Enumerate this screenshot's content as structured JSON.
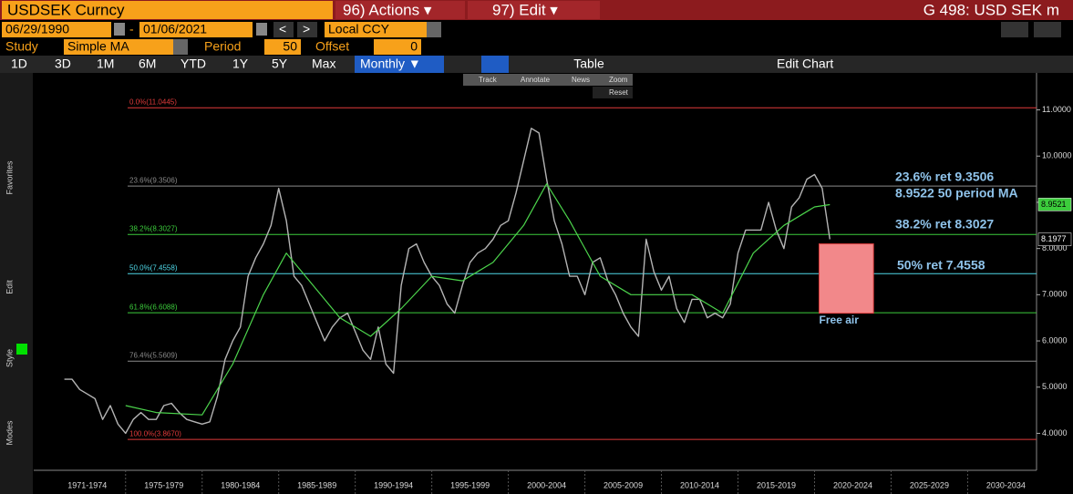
{
  "ui": {
    "title": "USDSEK Curncy",
    "actions": "96) Actions ▾",
    "edit": "97) Edit ▾",
    "security": "G 498: USD SEK m",
    "start_date": "06/29/1990",
    "end_date": "01/06/2021",
    "currency": "Local CCY",
    "study_label": "Study",
    "study": "Simple MA",
    "period_label": "Period",
    "period": "50",
    "offset_label": "Offset",
    "offset": "0",
    "ranges": [
      "1D",
      "3D",
      "1M",
      "6M",
      "YTD",
      "1Y",
      "5Y",
      "Max"
    ],
    "frequency": "Monthly ▼",
    "table": "Table",
    "edit_chart": "Edit Chart",
    "tools": [
      "Track",
      "Annotate",
      "News",
      "Zoom",
      "Reset"
    ],
    "side": [
      "Favorites",
      "Edit",
      "Style",
      "Modes"
    ]
  },
  "chart_data": {
    "type": "line",
    "xlim": [
      1969,
      2034.5
    ],
    "ylim": [
      3.2,
      11.8
    ],
    "yticks": [
      {
        "value": 4,
        "label": "4.0000"
      },
      {
        "value": 5,
        "label": "5.0000"
      },
      {
        "value": 6,
        "label": "6.0000"
      },
      {
        "value": 7,
        "label": "7.0000"
      },
      {
        "value": 8,
        "label": "8.0000"
      },
      {
        "value": 9,
        "label": "9.0000"
      },
      {
        "value": 10,
        "label": "10.0000"
      },
      {
        "value": 11,
        "label": "11.0000"
      }
    ],
    "xticks": [
      {
        "value": 1972.5,
        "label": "1971-1974"
      },
      {
        "value": 1977.5,
        "label": "1975-1979"
      },
      {
        "value": 1982.5,
        "label": "1980-1984"
      },
      {
        "value": 1987.5,
        "label": "1985-1989"
      },
      {
        "value": 1992.5,
        "label": "1990-1994"
      },
      {
        "value": 1997.5,
        "label": "1995-1999"
      },
      {
        "value": 2002.5,
        "label": "2000-2004"
      },
      {
        "value": 2007.5,
        "label": "2005-2009"
      },
      {
        "value": 2012.5,
        "label": "2010-2014"
      },
      {
        "value": 2017.5,
        "label": "2015-2019"
      },
      {
        "value": 2022.5,
        "label": "2020-2024"
      },
      {
        "value": 2027.5,
        "label": "2025-2029"
      },
      {
        "value": 2032.5,
        "label": "2030-2034"
      }
    ],
    "xgrid": [
      1975,
      1980,
      1985,
      1990,
      1995,
      2000,
      2005,
      2010,
      2015,
      2020,
      2025,
      2030
    ],
    "series": [
      {
        "name": "USDSEK",
        "color": "#b4b4b4",
        "x": [
          1971,
          1971.5,
          1972,
          1972.5,
          1973,
          1973.5,
          1974,
          1974.5,
          1975,
          1975.5,
          1976,
          1976.5,
          1977,
          1977.5,
          1978,
          1978.5,
          1979,
          1979.5,
          1980,
          1980.5,
          1981,
          1981.5,
          1982,
          1982.5,
          1983,
          1983.5,
          1984,
          1984.5,
          1985,
          1985.5,
          1986,
          1986.5,
          1987,
          1987.5,
          1988,
          1988.5,
          1989,
          1989.5,
          1990,
          1990.5,
          1991,
          1991.5,
          1992,
          1992.5,
          1993,
          1993.5,
          1994,
          1994.5,
          1995,
          1995.5,
          1996,
          1996.5,
          1997,
          1997.5,
          1998,
          1998.5,
          1999,
          1999.5,
          2000,
          2000.5,
          2001,
          2001.5,
          2002,
          2002.5,
          2003,
          2003.5,
          2004,
          2004.5,
          2005,
          2005.5,
          2006,
          2006.5,
          2007,
          2007.5,
          2008,
          2008.5,
          2009,
          2009.5,
          2010,
          2010.5,
          2011,
          2011.5,
          2012,
          2012.5,
          2013,
          2013.5,
          2014,
          2014.5,
          2015,
          2015.5,
          2016,
          2016.5,
          2017,
          2017.5,
          2018,
          2018.5,
          2019,
          2019.5,
          2020,
          2020.5,
          2021
        ],
        "values": [
          5.17,
          5.17,
          4.95,
          4.85,
          4.75,
          4.3,
          4.6,
          4.2,
          4.0,
          4.3,
          4.45,
          4.3,
          4.3,
          4.6,
          4.65,
          4.45,
          4.3,
          4.25,
          4.2,
          4.25,
          4.8,
          5.6,
          6.0,
          6.3,
          7.4,
          7.8,
          8.1,
          8.5,
          9.3,
          8.6,
          7.4,
          7.2,
          6.8,
          6.4,
          6.0,
          6.3,
          6.5,
          6.6,
          6.2,
          5.8,
          5.6,
          6.3,
          5.5,
          5.3,
          7.2,
          8.0,
          8.1,
          7.7,
          7.4,
          7.2,
          6.8,
          6.6,
          7.2,
          7.7,
          7.9,
          8.0,
          8.2,
          8.5,
          8.6,
          9.2,
          9.9,
          10.6,
          10.5,
          9.5,
          8.6,
          8.1,
          7.4,
          7.4,
          7.0,
          7.7,
          7.8,
          7.3,
          7.0,
          6.6,
          6.3,
          6.1,
          8.2,
          7.5,
          7.1,
          7.4,
          6.7,
          6.4,
          6.9,
          6.9,
          6.5,
          6.6,
          6.5,
          6.8,
          7.9,
          8.4,
          8.4,
          8.4,
          9.0,
          8.4,
          8.0,
          8.9,
          9.1,
          9.5,
          9.6,
          9.3,
          8.2
        ]
      },
      {
        "name": "Simple MA",
        "color": "#4cd44c",
        "x": [
          1975,
          1977,
          1980,
          1982,
          1984,
          1985.5,
          1987,
          1989,
          1991,
          1993,
          1995,
          1997,
          1999,
          2001,
          2002.5,
          2004,
          2006,
          2008,
          2010,
          2012,
          2014,
          2016,
          2018,
          2020,
          2021
        ],
        "values": [
          4.6,
          4.45,
          4.4,
          5.5,
          7.0,
          7.9,
          7.3,
          6.5,
          6.1,
          6.7,
          7.4,
          7.3,
          7.7,
          8.5,
          9.4,
          8.6,
          7.4,
          7.0,
          7.0,
          7.0,
          6.6,
          7.9,
          8.5,
          8.9,
          8.95
        ]
      }
    ],
    "fib_levels": [
      {
        "label": "0.0%(11.0445)",
        "value": 11.0445,
        "color": "#e03a3a"
      },
      {
        "label": "23.6%(9.3506)",
        "value": 9.3506,
        "color": "#8a8a8a"
      },
      {
        "label": "38.2%(8.3027)",
        "value": 8.3027,
        "color": "#3ccc3c"
      },
      {
        "label": "50.0%(7.4558)",
        "value": 7.4558,
        "color": "#4fd8e8"
      },
      {
        "label": "61.8%(6.6088)",
        "value": 6.6088,
        "color": "#3ccc3c"
      },
      {
        "label": "76.4%(5.5609)",
        "value": 5.5609,
        "color": "#8a8a8a"
      },
      {
        "label": "100.0%(3.8670)",
        "value": 3.867,
        "color": "#e03a3a"
      }
    ],
    "annotations": [
      {
        "text": "23.6% ret 9.3506",
        "color": "#8fc3ea"
      },
      {
        "text": "8.9522 50 period MA",
        "color": "#8fc3ea"
      },
      {
        "text": "38.2% ret 8.3027",
        "color": "#8fc3ea"
      },
      {
        "text": "50% ret 7.4558",
        "color": "#8fc3ea"
      }
    ],
    "region": {
      "x": [
        2020.3,
        2023.85
      ],
      "y": [
        6.6,
        8.1
      ],
      "color": "#f2888a",
      "label": "Free air"
    },
    "price_tags": [
      {
        "value": 8.9521,
        "color": "#3ccc3c"
      },
      {
        "value": 8.1977,
        "color": "#000000"
      }
    ]
  }
}
